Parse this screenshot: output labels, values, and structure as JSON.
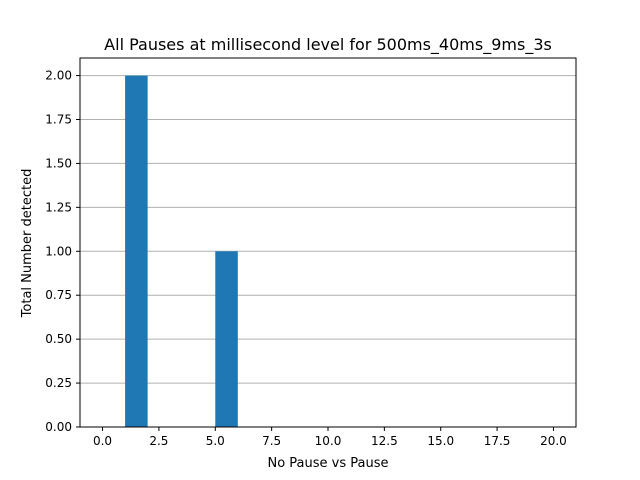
{
  "chart_data": {
    "type": "bar",
    "title": "All Pauses at millisecond level for 500ms_40ms_9ms_3s",
    "xlabel": "No Pause vs Pause",
    "ylabel": "Total Number detected",
    "xlim": [
      -1,
      21
    ],
    "ylim": [
      0,
      2.1
    ],
    "grid": "y",
    "x_ticks": [
      {
        "value": 0,
        "label": "0.0"
      },
      {
        "value": 2.5,
        "label": "2.5"
      },
      {
        "value": 5,
        "label": "5.0"
      },
      {
        "value": 7.5,
        "label": "7.5"
      },
      {
        "value": 10,
        "label": "10.0"
      },
      {
        "value": 12.5,
        "label": "12.5"
      },
      {
        "value": 15,
        "label": "15.0"
      },
      {
        "value": 17.5,
        "label": "17.5"
      },
      {
        "value": 20,
        "label": "20.0"
      }
    ],
    "y_ticks": [
      {
        "value": 0,
        "label": "0.00"
      },
      {
        "value": 0.25,
        "label": "0.25"
      },
      {
        "value": 0.5,
        "label": "0.50"
      },
      {
        "value": 0.75,
        "label": "0.75"
      },
      {
        "value": 1.0,
        "label": "1.00"
      },
      {
        "value": 1.25,
        "label": "1.25"
      },
      {
        "value": 1.5,
        "label": "1.50"
      },
      {
        "value": 1.75,
        "label": "1.75"
      },
      {
        "value": 2.0,
        "label": "2.00"
      }
    ],
    "bars": [
      {
        "x0": 1,
        "x1": 2,
        "value": 2
      },
      {
        "x0": 5,
        "x1": 6,
        "value": 1
      }
    ],
    "bar_color": "#1f77b4",
    "grid_color": "#b0b0b0"
  }
}
